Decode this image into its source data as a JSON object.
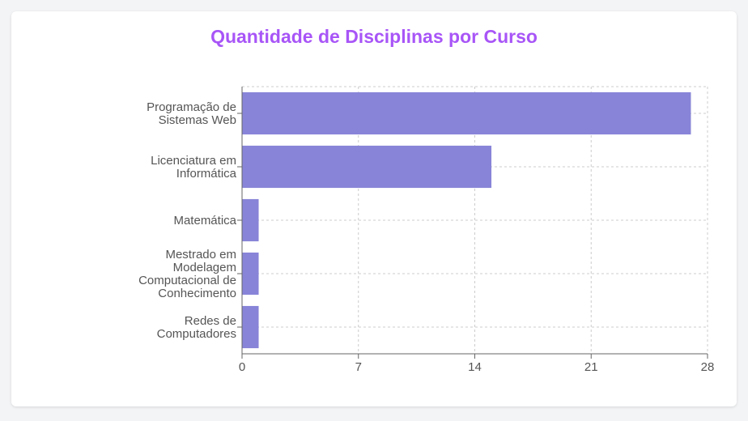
{
  "chart_data": {
    "type": "bar",
    "orientation": "horizontal",
    "title": "Quantidade de Disciplinas por Curso",
    "xlabel": "",
    "ylabel": "",
    "categories": [
      [
        "Programação de",
        "Sistemas Web"
      ],
      [
        "Licenciatura em",
        "Informática"
      ],
      [
        "Matemática"
      ],
      [
        "Mestrado em",
        "Modelagem",
        "Computacional de",
        "Conhecimento"
      ],
      [
        "Redes de",
        "Computadores"
      ]
    ],
    "values": [
      27,
      15,
      1,
      1,
      1
    ],
    "xlim": [
      0,
      28
    ],
    "xticks": [
      "0",
      "7",
      "14",
      "21",
      "28"
    ],
    "grid": true,
    "bar_color": "#8884d8",
    "title_color": "#a855f7"
  }
}
